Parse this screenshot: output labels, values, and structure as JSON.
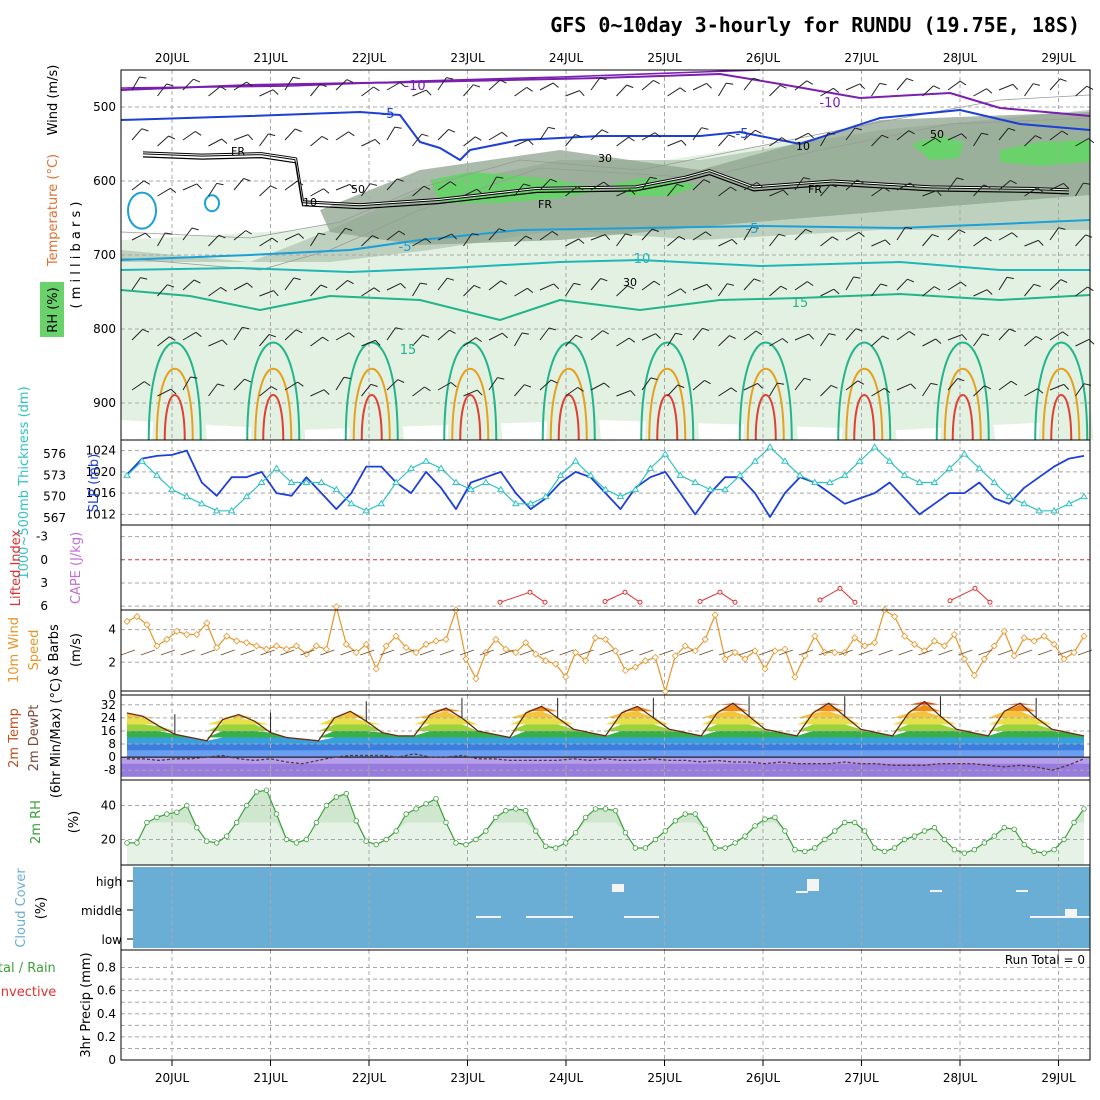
{
  "colors": {
    "grid": "#a8a8a8",
    "slp": "#1d3fd6",
    "thickness": "#31c2c2",
    "lifted": "#e03030",
    "wind": "#e8962a",
    "barb": "#6b4a2a",
    "rh": "#3aa03a",
    "cloud": "#6aaed6",
    "precip_total": "#3aa03a",
    "precip_conv": "#e03030",
    "temp_purple": "#7a1fb0",
    "temp_blue": "#1d3fd6",
    "temp_cyan": "#1ca0d8",
    "temp_teal": "#20b6b6",
    "temp_green": "#22b48a",
    "temp_orange": "#e4a21e",
    "temp_red": "#e04030",
    "moist_light": "#e3f1e3",
    "moist_mid": "#b7cbb7",
    "moist_dark": "#8fa48f",
    "moist_bright": "#6ad26a"
  },
  "chart_data": [
    {
      "type": "contour",
      "title": "GFS 0~10day 3-hourly for RUNDU (19.75E, 18S)",
      "x_dates": [
        "20JUL",
        "21JUL",
        "22JUL",
        "23JUL",
        "24JUL",
        "25JUL",
        "26JUL",
        "27JUL",
        "28JUL",
        "29JUL"
      ],
      "y_axis_label": "( m i l l i b a r s )",
      "y_ticks": [
        500,
        600,
        700,
        800,
        900
      ],
      "ylim": [
        450,
        950
      ],
      "legend_labels": [
        "Wind (m/s)",
        "Temperature (°C)",
        "RH (%)"
      ],
      "contour_labels": {
        "FR": "FR",
        "m10": "-10",
        "m5": "-5",
        "p10": "10",
        "p15": "15",
        "rh50": "50",
        "rh30": "30",
        "rh10": "10"
      },
      "freezing_level": [
        {
          "t": 0,
          "p": 562
        },
        {
          "t": 0.6,
          "p": 565
        },
        {
          "t": 1.2,
          "p": 563
        },
        {
          "t": 1.55,
          "p": 570
        },
        {
          "t": 1.62,
          "p": 628
        },
        {
          "t": 2.2,
          "p": 632
        },
        {
          "t": 3,
          "p": 625
        },
        {
          "t": 4,
          "p": 610
        },
        {
          "t": 5,
          "p": 608
        },
        {
          "t": 5.5,
          "p": 595
        },
        {
          "t": 5.75,
          "p": 586
        },
        {
          "t": 6.2,
          "p": 608
        },
        {
          "t": 7,
          "p": 600
        },
        {
          "t": 8,
          "p": 608
        },
        {
          "t": 9,
          "p": 610
        },
        {
          "t": 9.4,
          "p": 612
        }
      ]
    },
    {
      "type": "line",
      "ylabel": "SLP (mb)",
      "ylabel2": "1000~500mb Thickness (dm)",
      "yticks": [
        1012,
        1016,
        1020,
        1024
      ],
      "yticks2": [
        567,
        570,
        573,
        576
      ],
      "series": [
        {
          "name": "SLP",
          "values": [
            1019.5,
            1022.5,
            1023,
            1023.2,
            1024,
            1018,
            1015.5,
            1019,
            1019,
            1020,
            1016,
            1015.5,
            1019,
            1016,
            1013,
            1016,
            1021,
            1021,
            1018,
            1016,
            1020,
            1017,
            1013,
            1018,
            1019,
            1020,
            1016,
            1013,
            1015,
            1018,
            1020,
            1019,
            1016,
            1013,
            1017,
            1019,
            1020,
            1016,
            1012,
            1016,
            1019,
            1019,
            1016,
            1011.5,
            1016,
            1019,
            1018,
            1016,
            1014,
            1015,
            1016,
            1018,
            1015,
            1012,
            1014,
            1016,
            1016,
            1018,
            1015,
            1014,
            1017,
            1019,
            1021,
            1022.5,
            1023
          ]
        },
        {
          "name": "Thickness",
          "values": [
            573,
            575,
            573,
            571,
            570,
            569,
            568,
            568,
            570,
            572,
            574,
            572,
            572,
            572,
            571,
            569,
            568,
            569,
            572,
            574,
            575,
            574,
            572,
            571,
            572,
            571,
            569,
            569,
            570,
            573,
            575,
            573,
            571,
            570,
            571,
            574,
            576,
            573,
            572,
            571,
            571,
            573,
            575,
            577,
            575,
            573,
            572,
            572,
            573,
            575,
            577,
            575,
            573,
            572,
            572,
            574,
            576,
            574,
            572,
            570,
            569,
            568,
            568,
            569,
            570
          ]
        }
      ]
    },
    {
      "type": "line",
      "ylabel": "Lifted Index",
      "ylabel2": "CAPE (J/kg)",
      "yticks": [
        -3,
        0,
        3,
        6
      ],
      "series": [
        {
          "name": "Lifted Index (dips)",
          "values": [
            5.5,
            4.2,
            5.5,
            5.4,
            4.2,
            5.5,
            5.4,
            4.2,
            5.5,
            5.2,
            3.7,
            5.5,
            5.3,
            3.7,
            5.5
          ]
        }
      ]
    },
    {
      "type": "line",
      "ylabel": "10m Wind Speed (m/s) & Barbs",
      "yticks": [
        0,
        2,
        4
      ],
      "series": [
        {
          "name": "10m Wind Speed",
          "values": [
            4.5,
            4.8,
            4.3,
            3,
            3.4,
            3.9,
            3.7,
            3.7,
            4.4,
            2.9,
            3.6,
            3.3,
            3.2,
            3,
            2.8,
            3,
            2.8,
            3,
            2.5,
            3,
            2.8,
            5.4,
            3.1,
            2.6,
            3.1,
            1.6,
            3,
            3.6,
            2.9,
            2.6,
            3.1,
            3.3,
            3.4,
            5.2,
            2.2,
            1,
            2.6,
            3.4,
            2.8,
            2.6,
            3.2,
            2.5,
            2.1,
            1.9,
            1.1,
            2.6,
            2.1,
            3.5,
            3.4,
            2.7,
            1.5,
            1.7,
            2.1,
            2.3,
            0.2,
            2.4,
            3,
            2.7,
            3.4,
            4.9,
            2.2,
            2.6,
            2.2,
            2.7,
            1.6,
            2.7,
            2.8,
            1.1,
            2.4,
            3.6,
            2.6,
            2.6,
            2.6,
            3.5,
            3,
            3.2,
            5.2,
            4.8,
            3.6,
            3.1,
            2.7,
            3.3,
            3,
            3.7,
            2.2,
            1.2,
            2.2,
            3,
            3.9,
            2.4,
            3.5,
            3.3,
            3.6,
            3.1,
            2.2,
            2.6,
            3.6
          ]
        }
      ]
    },
    {
      "type": "area",
      "ylabel": "2m Temp",
      "ylabel2": "2m DewPt",
      "ylabel3": "(6hr Min/Max) (°C)",
      "yticks": [
        -8,
        0,
        8,
        16,
        24,
        32
      ],
      "series": [
        {
          "name": "2m Temp",
          "values": [
            27,
            25,
            19,
            14,
            12,
            10,
            23,
            26,
            22,
            15,
            12,
            11,
            10,
            24,
            28,
            22,
            15,
            13,
            13,
            26,
            30,
            24,
            16,
            14,
            12,
            27,
            31,
            24,
            17,
            15,
            13,
            27,
            31,
            24,
            17,
            15,
            13,
            27,
            33,
            25,
            17,
            15,
            13,
            27,
            33,
            25,
            17,
            15,
            13,
            27,
            34,
            25,
            17,
            15,
            13,
            28,
            33,
            24,
            17,
            15,
            13
          ]
        },
        {
          "name": "2m DewPt",
          "values": [
            -1,
            -1,
            -2,
            -1,
            -1,
            0,
            1,
            -1,
            -2,
            -1,
            -3,
            -4,
            -2,
            0,
            1,
            1,
            1,
            0,
            2,
            0,
            0,
            1,
            -1,
            -1,
            -2,
            -2,
            -2,
            -2,
            -1,
            -2,
            -1,
            -2,
            -2,
            -1,
            -2,
            -2,
            -3,
            -2,
            -3,
            -3,
            -4,
            -3,
            -4,
            -4,
            -4,
            -3,
            -4,
            -4,
            -5,
            -5,
            -5,
            -4,
            -4,
            -4,
            -5,
            -6,
            -5,
            -6,
            -8,
            -5,
            -1
          ]
        }
      ]
    },
    {
      "type": "area",
      "ylabel": "2m RH (%)",
      "yticks": [
        20,
        40
      ],
      "series": [
        {
          "name": "2m RH",
          "values": [
            18,
            18,
            30,
            33,
            35,
            36,
            40,
            27,
            19,
            18,
            22,
            30,
            40,
            48,
            49,
            35,
            20,
            18,
            20,
            30,
            40,
            45,
            47,
            31,
            19,
            17,
            20,
            25,
            35,
            38,
            41,
            44,
            30,
            18,
            17,
            20,
            25,
            33,
            37,
            38,
            37,
            25,
            16,
            15,
            18,
            24,
            33,
            38,
            38,
            37,
            24,
            15,
            15,
            20,
            25,
            31,
            35,
            35,
            26,
            15,
            15,
            18,
            22,
            28,
            32,
            33,
            25,
            14,
            13,
            15,
            20,
            25,
            30,
            30,
            25,
            15,
            13,
            15,
            20,
            22,
            25,
            27,
            20,
            14,
            12,
            14,
            18,
            22,
            27,
            26,
            17,
            13,
            12,
            14,
            20,
            30,
            38
          ]
        }
      ]
    },
    {
      "type": "bar",
      "ylabel": "Cloud Cover (%)",
      "ytick_labels": [
        "high",
        "middle",
        "low"
      ],
      "series": []
    },
    {
      "type": "bar",
      "ylabel": "3hr Precip (mm)",
      "legend": [
        "Total / Rain",
        "Convective"
      ],
      "yticks": [
        0,
        0.2,
        0.4,
        0.6,
        0.8
      ],
      "annotation": "Run Total = 0",
      "series": [
        {
          "name": "3hr Precip",
          "values": []
        }
      ]
    }
  ]
}
